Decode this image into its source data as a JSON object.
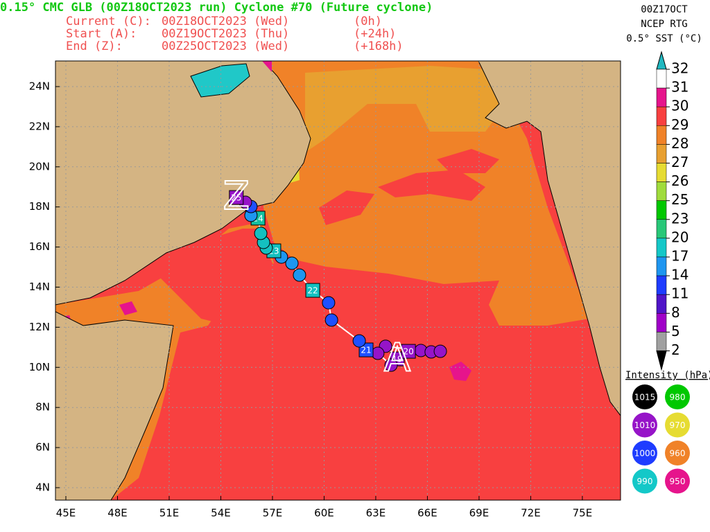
{
  "header": {
    "title": "0.15° CMC GLB (00Z18OCT2023 run) Cyclone #70 (Future cyclone)",
    "lines": [
      [
        "Current (C):",
        "00Z18OCT2023 (Wed)",
        "(0h)"
      ],
      [
        "Start (A):",
        "00Z19OCT2023 (Thu)",
        "(+24h)"
      ],
      [
        "End (Z):",
        "00Z25OCT2023 (Wed)",
        "(+168h)"
      ]
    ]
  },
  "sst_legend": {
    "lines": [
      "00Z17OCT",
      "NCEP RTG",
      "0.5° SST (°C)"
    ],
    "ticks": [
      32,
      31,
      30,
      29,
      28,
      27,
      26,
      25,
      23,
      20,
      17,
      14,
      11,
      8,
      5,
      2
    ],
    "colors": [
      "#20b8c0",
      "#ffffff",
      "#e6148c",
      "#f84040",
      "#f08228",
      "#e8a030",
      "#e6dc32",
      "#a0dc3c",
      "#00c800",
      "#28c878",
      "#14c8c8",
      "#1e96f0",
      "#1e3cff",
      "#5014c8",
      "#a000c8",
      "#a0a0a0",
      "#000000"
    ]
  },
  "intensity_legend": {
    "title": "Intensity (hPa):",
    "items": [
      {
        "label": 1015,
        "color": "#000000"
      },
      {
        "label": 980,
        "color": "#00c800"
      },
      {
        "label": 1010,
        "color": "#9614c8"
      },
      {
        "label": 970,
        "color": "#e6dc32"
      },
      {
        "label": 1000,
        "color": "#1e3cff"
      },
      {
        "label": 960,
        "color": "#f08228"
      },
      {
        "label": 990,
        "color": "#14c8c8"
      },
      {
        "label": 950,
        "color": "#e6148c"
      }
    ]
  },
  "map": {
    "xticks": [
      {
        "value": 45,
        "label": "45E"
      },
      {
        "value": 48,
        "label": "48E"
      },
      {
        "value": 51,
        "label": "51E"
      },
      {
        "value": 54,
        "label": "54E"
      },
      {
        "value": 57,
        "label": "57E"
      },
      {
        "value": 60,
        "label": "60E"
      },
      {
        "value": 63,
        "label": "63E"
      },
      {
        "value": 66,
        "label": "66E"
      },
      {
        "value": 69,
        "label": "69E"
      },
      {
        "value": 72,
        "label": "72E"
      },
      {
        "value": 75,
        "label": "75E"
      }
    ],
    "yticks": [
      {
        "value": 4,
        "label": "4N"
      },
      {
        "value": 6,
        "label": "6N"
      },
      {
        "value": 8,
        "label": "8N"
      },
      {
        "value": 10,
        "label": "10N"
      },
      {
        "value": 12,
        "label": "12N"
      },
      {
        "value": 14,
        "label": "14N"
      },
      {
        "value": 16,
        "label": "16N"
      },
      {
        "value": 18,
        "label": "18N"
      },
      {
        "value": 20,
        "label": "20N"
      },
      {
        "value": 22,
        "label": "22N"
      },
      {
        "value": 24,
        "label": "24N"
      }
    ],
    "start_marker": "A",
    "end_marker": "Z",
    "track": [
      {
        "lon": 64.25,
        "lat": 10.42,
        "color": "#9614c8",
        "shape": "square",
        "label": "19"
      },
      {
        "lon": 63.57,
        "lat": 11.05,
        "color": "#9614c8",
        "shape": "circle"
      },
      {
        "lon": 65.62,
        "lat": 10.84,
        "color": "#9614c8",
        "shape": "circle"
      },
      {
        "lon": 66.22,
        "lat": 10.77,
        "color": "#9614c8",
        "shape": "circle"
      },
      {
        "lon": 66.75,
        "lat": 10.8,
        "color": "#9614c8",
        "shape": "circle"
      },
      {
        "lon": 64.9,
        "lat": 10.8,
        "color": "#9614c8",
        "shape": "square",
        "label": "20"
      },
      {
        "lon": 63.89,
        "lat": 10.11,
        "color": "#9614c8",
        "shape": "circle"
      },
      {
        "lon": 63.12,
        "lat": 10.7,
        "color": "#9614c8",
        "shape": "circle"
      },
      {
        "lon": 62.44,
        "lat": 10.87,
        "color": "#1e50ff",
        "shape": "square",
        "label": "21"
      },
      {
        "lon": 62.04,
        "lat": 11.32,
        "color": "#1e50ff",
        "shape": "circle"
      },
      {
        "lon": 60.43,
        "lat": 12.36,
        "color": "#1e50ff",
        "shape": "circle"
      },
      {
        "lon": 60.26,
        "lat": 13.22,
        "color": "#1e50ff",
        "shape": "circle"
      },
      {
        "lon": 59.34,
        "lat": 13.84,
        "color": "#14c0c0",
        "shape": "square",
        "label": "22"
      },
      {
        "lon": 58.57,
        "lat": 14.6,
        "color": "#1e96f0",
        "shape": "circle"
      },
      {
        "lon": 58.13,
        "lat": 15.19,
        "color": "#1e96f0",
        "shape": "circle"
      },
      {
        "lon": 57.52,
        "lat": 15.5,
        "color": "#1e96f0",
        "shape": "circle"
      },
      {
        "lon": 57.08,
        "lat": 15.81,
        "color": "#14c0c0",
        "shape": "square",
        "label": "23"
      },
      {
        "lon": 56.64,
        "lat": 15.95,
        "color": "#14c0c0",
        "shape": "circle"
      },
      {
        "lon": 56.48,
        "lat": 16.23,
        "color": "#14c0c0",
        "shape": "circle"
      },
      {
        "lon": 56.32,
        "lat": 16.68,
        "color": "#14c0c0",
        "shape": "circle"
      },
      {
        "lon": 56.16,
        "lat": 17.44,
        "color": "#14c0a0",
        "shape": "square",
        "label": "24"
      },
      {
        "lon": 55.75,
        "lat": 17.58,
        "color": "#1e96f0",
        "shape": "circle"
      },
      {
        "lon": 55.75,
        "lat": 18.02,
        "color": "#1e50ff",
        "shape": "circle"
      },
      {
        "lon": 55.43,
        "lat": 18.23,
        "color": "#9614c8",
        "shape": "circle"
      },
      {
        "lon": 54.9,
        "lat": 18.47,
        "color": "#9614c8",
        "shape": "square",
        "label": "25"
      }
    ]
  }
}
